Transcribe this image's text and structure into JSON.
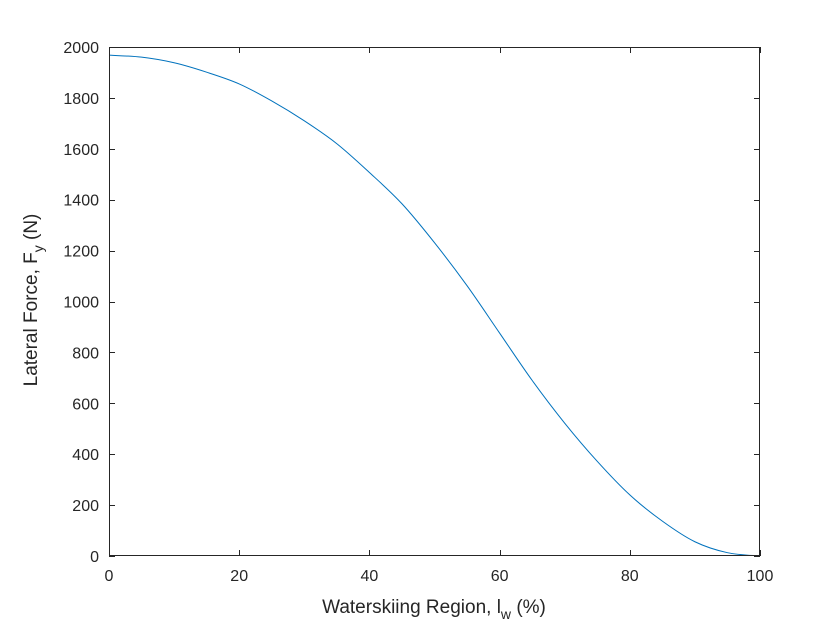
{
  "chart_data": {
    "type": "line",
    "xlabel": {
      "main": "Waterskiing Region, l",
      "sub": "w",
      "unit": " (%)"
    },
    "ylabel": {
      "main": "Lateral Force, F",
      "sub": "y",
      "unit": " (N)"
    },
    "xlim": [
      0,
      100
    ],
    "ylim": [
      0,
      2000
    ],
    "x_ticks": [
      0,
      20,
      40,
      60,
      80,
      100
    ],
    "y_ticks": [
      0,
      200,
      400,
      600,
      800,
      1000,
      1200,
      1400,
      1600,
      1800,
      2000
    ],
    "grid": false,
    "series": [
      {
        "color": "#0072BD",
        "x": [
          0,
          5,
          10,
          15,
          20,
          25,
          30,
          35,
          40,
          45,
          50,
          55,
          60,
          65,
          70,
          75,
          80,
          85,
          90,
          95,
          100
        ],
        "y": [
          1968,
          1960,
          1938,
          1901,
          1855,
          1788,
          1710,
          1620,
          1507,
          1384,
          1231,
          1062,
          876,
          690,
          522,
          372,
          240,
          137,
          56,
          13,
          0
        ]
      }
    ]
  }
}
